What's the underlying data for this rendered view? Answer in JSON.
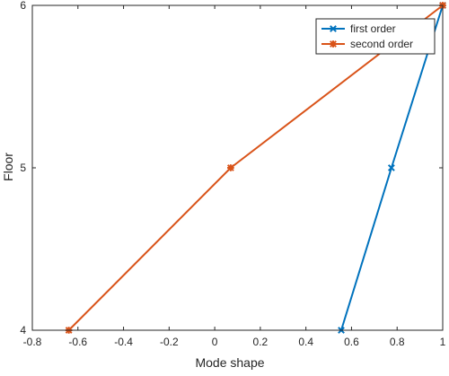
{
  "chart_data": {
    "type": "line",
    "title": "",
    "xlabel": "Mode shape",
    "ylabel": "Floor",
    "xlim": [
      -0.8,
      1
    ],
    "ylim": [
      4,
      6
    ],
    "xticks": [
      -0.8,
      -0.6,
      -0.4,
      -0.2,
      0,
      0.2,
      0.4,
      0.6,
      0.8,
      1
    ],
    "xtick_labels": [
      "-0.8",
      "-0.6",
      "-0.4",
      "-0.2",
      "0",
      "0.2",
      "0.4",
      "0.6",
      "0.8",
      "1"
    ],
    "yticks": [
      4,
      5,
      6
    ],
    "ytick_labels": [
      "4",
      "5",
      "6"
    ],
    "grid": false,
    "legend_position": "top-right",
    "series": [
      {
        "name": "first order",
        "color": "#0072BD",
        "marker": "x",
        "x": [
          0.555,
          0.775,
          1.0
        ],
        "y": [
          4,
          5,
          6
        ]
      },
      {
        "name": "second order",
        "color": "#D95319",
        "marker": "asterisk",
        "x": [
          -0.64,
          0.07,
          1.0
        ],
        "y": [
          4,
          5,
          6
        ]
      }
    ]
  }
}
